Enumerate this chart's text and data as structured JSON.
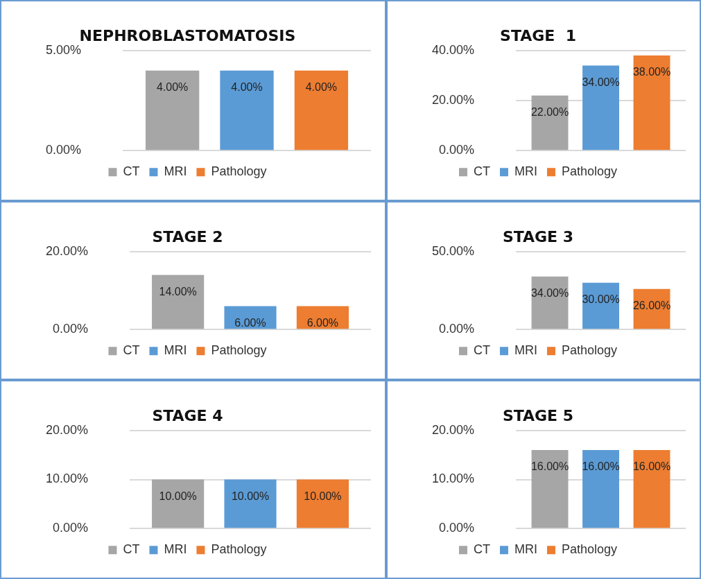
{
  "chart_data": [
    {
      "type": "bar",
      "title": "NEPHROBLASTOMATOSIS",
      "categories": [
        null
      ],
      "series": [
        {
          "name": "CT",
          "color": "#a6a6a6",
          "values": [
            4
          ],
          "value_labels": [
            "4.00%"
          ]
        },
        {
          "name": "MRI",
          "color": "#5b9bd5",
          "values": [
            4
          ],
          "value_labels": [
            "4.00%"
          ]
        },
        {
          "name": "Pathology",
          "color": "#ed7d31",
          "values": [
            4
          ],
          "value_labels": [
            "4.00%"
          ]
        }
      ],
      "ylim": [
        0,
        5
      ],
      "yticks": [
        {
          "value": 0,
          "label": "0.00%"
        },
        {
          "value": 5,
          "label": "5.00%"
        }
      ],
      "grid": "y",
      "legend": "bottom",
      "tick_labels": "y"
    },
    {
      "type": "bar",
      "title": "STAGE  1",
      "categories": [
        null
      ],
      "series": [
        {
          "name": "CT",
          "color": "#a6a6a6",
          "values": [
            22
          ],
          "value_labels": [
            "22.00%"
          ]
        },
        {
          "name": "MRI",
          "color": "#5b9bd5",
          "values": [
            34
          ],
          "value_labels": [
            "34.00%"
          ]
        },
        {
          "name": "Pathology",
          "color": "#ed7d31",
          "values": [
            38
          ],
          "value_labels": [
            "38.00%"
          ]
        }
      ],
      "ylim": [
        0,
        40
      ],
      "yticks": [
        {
          "value": 0,
          "label": "0.00%"
        },
        {
          "value": 20,
          "label": "20.00%"
        },
        {
          "value": 40,
          "label": "40.00%"
        }
      ],
      "grid": "y",
      "legend": "bottom",
      "tick_labels": "y"
    },
    {
      "type": "bar",
      "title": "STAGE 2",
      "categories": [
        null
      ],
      "series": [
        {
          "name": "CT",
          "color": "#a6a6a6",
          "values": [
            14
          ],
          "value_labels": [
            "14.00%"
          ]
        },
        {
          "name": "MRI",
          "color": "#5b9bd5",
          "values": [
            6
          ],
          "value_labels": [
            "6.00%"
          ]
        },
        {
          "name": "Pathology",
          "color": "#ed7d31",
          "values": [
            6
          ],
          "value_labels": [
            "6.00%"
          ]
        }
      ],
      "ylim": [
        0,
        20
      ],
      "yticks": [
        {
          "value": 0,
          "label": "0.00%"
        },
        {
          "value": 20,
          "label": "20.00%"
        }
      ],
      "grid": "y",
      "legend": "bottom",
      "tick_labels": "y"
    },
    {
      "type": "bar",
      "title": "STAGE 3",
      "categories": [
        null
      ],
      "series": [
        {
          "name": "CT",
          "color": "#a6a6a6",
          "values": [
            34
          ],
          "value_labels": [
            "34.00%"
          ]
        },
        {
          "name": "MRI",
          "color": "#5b9bd5",
          "values": [
            30
          ],
          "value_labels": [
            "30.00%"
          ]
        },
        {
          "name": "Pathology",
          "color": "#ed7d31",
          "values": [
            26
          ],
          "value_labels": [
            "26.00%"
          ]
        }
      ],
      "ylim": [
        0,
        50
      ],
      "yticks": [
        {
          "value": 0,
          "label": "0.00%"
        },
        {
          "value": 50,
          "label": "50.00%"
        }
      ],
      "grid": "y",
      "legend": "bottom",
      "tick_labels": "y"
    },
    {
      "type": "bar",
      "title": "STAGE 4",
      "categories": [
        null
      ],
      "series": [
        {
          "name": "CT",
          "color": "#a6a6a6",
          "values": [
            10
          ],
          "value_labels": [
            "10.00%"
          ]
        },
        {
          "name": "MRI",
          "color": "#5b9bd5",
          "values": [
            10
          ],
          "value_labels": [
            "10.00%"
          ]
        },
        {
          "name": "Pathology",
          "color": "#ed7d31",
          "values": [
            10
          ],
          "value_labels": [
            "10.00%"
          ]
        }
      ],
      "ylim": [
        0,
        20
      ],
      "yticks": [
        {
          "value": 0,
          "label": "0.00%"
        },
        {
          "value": 10,
          "label": "10.00%"
        },
        {
          "value": 20,
          "label": "20.00%"
        }
      ],
      "grid": "y",
      "legend": "bottom",
      "tick_labels": "y"
    },
    {
      "type": "bar",
      "title": "STAGE 5",
      "categories": [
        null
      ],
      "series": [
        {
          "name": "CT",
          "color": "#a6a6a6",
          "values": [
            16
          ],
          "value_labels": [
            "16.00%"
          ]
        },
        {
          "name": "MRI",
          "color": "#5b9bd5",
          "values": [
            16
          ],
          "value_labels": [
            "16.00%"
          ]
        },
        {
          "name": "Pathology",
          "color": "#ed7d31",
          "values": [
            16
          ],
          "value_labels": [
            "16.00%"
          ]
        }
      ],
      "ylim": [
        0,
        20
      ],
      "yticks": [
        {
          "value": 0,
          "label": "0.00%"
        },
        {
          "value": 10,
          "label": "10.00%"
        },
        {
          "value": 20,
          "label": "20.00%"
        }
      ],
      "grid": "y",
      "legend": "bottom",
      "tick_labels": "y"
    }
  ]
}
